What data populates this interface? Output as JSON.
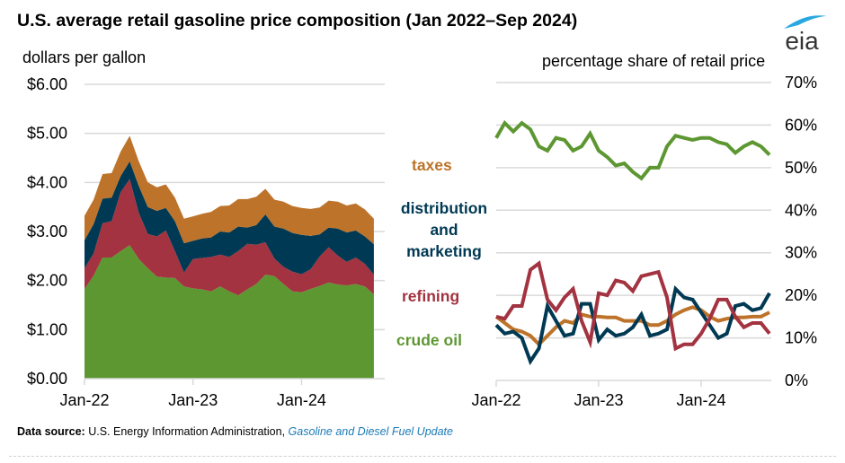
{
  "title": "U.S. average retail gasoline price composition (Jan 2022–Sep 2024)",
  "logo_text": "eia",
  "legend": {
    "taxes": "taxes",
    "distribution_line1": "distribution",
    "distribution_line2": "and",
    "distribution_line3": "marketing",
    "refining": "refining",
    "crude_oil": "crude oil"
  },
  "colors": {
    "crude_oil": "#5d9732",
    "refining": "#a33340",
    "distribution_marketing": "#003953",
    "taxes": "#bd732a",
    "grid": "#d9d9d9",
    "link": "#1b7bb7"
  },
  "footer": {
    "label": "Data source:",
    "text": " U.S. Energy Information Administration, ",
    "link_text": "Gasoline and Diesel Fuel Update"
  },
  "chart_data": [
    {
      "type": "area",
      "stacked": true,
      "title": "",
      "ylabel": "dollars per gallon",
      "xlabel": "",
      "ylim": [
        0,
        6
      ],
      "yticks": [
        "$0.00",
        "$1.00",
        "$2.00",
        "$3.00",
        "$4.00",
        "$5.00",
        "$6.00"
      ],
      "xticks": [
        "Jan-22",
        "Jan-23",
        "Jan-24"
      ],
      "grid": true,
      "x": [
        "Jan-22",
        "Feb-22",
        "Mar-22",
        "Apr-22",
        "May-22",
        "Jun-22",
        "Jul-22",
        "Aug-22",
        "Sep-22",
        "Oct-22",
        "Nov-22",
        "Dec-22",
        "Jan-23",
        "Feb-23",
        "Mar-23",
        "Apr-23",
        "May-23",
        "Jun-23",
        "Jul-23",
        "Aug-23",
        "Sep-23",
        "Oct-23",
        "Nov-23",
        "Dec-23",
        "Jan-24",
        "Feb-24",
        "Mar-24",
        "Apr-24",
        "May-24",
        "Jun-24",
        "Jul-24",
        "Aug-24",
        "Sep-24"
      ],
      "series": [
        {
          "name": "crude oil",
          "values": [
            1.83,
            2.1,
            2.47,
            2.47,
            2.6,
            2.72,
            2.44,
            2.25,
            2.08,
            2.06,
            2.05,
            1.88,
            1.84,
            1.82,
            1.78,
            1.88,
            1.78,
            1.7,
            1.82,
            1.93,
            2.12,
            2.09,
            1.93,
            1.78,
            1.76,
            1.83,
            1.89,
            1.96,
            1.92,
            1.9,
            1.93,
            1.88,
            1.72
          ]
        },
        {
          "name": "refining",
          "values": [
            0.42,
            0.45,
            0.7,
            0.74,
            1.2,
            1.35,
            0.94,
            0.7,
            0.82,
            0.96,
            0.55,
            0.28,
            0.6,
            0.64,
            0.7,
            0.65,
            0.7,
            0.9,
            0.93,
            0.8,
            0.66,
            0.36,
            0.35,
            0.4,
            0.37,
            0.4,
            0.6,
            0.72,
            0.59,
            0.48,
            0.54,
            0.46,
            0.4
          ]
        },
        {
          "name": "distribution and marketing",
          "values": [
            0.57,
            0.6,
            0.5,
            0.48,
            0.33,
            0.36,
            0.55,
            0.55,
            0.52,
            0.46,
            0.61,
            0.6,
            0.37,
            0.4,
            0.4,
            0.47,
            0.5,
            0.5,
            0.33,
            0.4,
            0.57,
            0.65,
            0.78,
            0.79,
            0.8,
            0.68,
            0.45,
            0.4,
            0.55,
            0.6,
            0.55,
            0.56,
            0.62
          ]
        },
        {
          "name": "taxes",
          "values": [
            0.5,
            0.5,
            0.5,
            0.5,
            0.5,
            0.52,
            0.5,
            0.5,
            0.48,
            0.48,
            0.48,
            0.5,
            0.5,
            0.5,
            0.52,
            0.52,
            0.55,
            0.56,
            0.58,
            0.58,
            0.52,
            0.55,
            0.55,
            0.55,
            0.55,
            0.55,
            0.55,
            0.55,
            0.55,
            0.55,
            0.55,
            0.55,
            0.52
          ]
        }
      ]
    },
    {
      "type": "line",
      "title": "",
      "ylabel": "percentage share of retail price",
      "xlabel": "",
      "ylim": [
        0,
        70
      ],
      "yticks": [
        "0%",
        "10%",
        "20%",
        "30%",
        "40%",
        "50%",
        "60%",
        "70%"
      ],
      "xticks": [
        "Jan-22",
        "Jan-23",
        "Jan-24"
      ],
      "grid": true,
      "x": [
        "Jan-22",
        "Feb-22",
        "Mar-22",
        "Apr-22",
        "May-22",
        "Jun-22",
        "Jul-22",
        "Aug-22",
        "Sep-22",
        "Oct-22",
        "Nov-22",
        "Dec-22",
        "Jan-23",
        "Feb-23",
        "Mar-23",
        "Apr-23",
        "May-23",
        "Jun-23",
        "Jul-23",
        "Aug-23",
        "Sep-23",
        "Oct-23",
        "Nov-23",
        "Dec-23",
        "Jan-24",
        "Feb-24",
        "Mar-24",
        "Apr-24",
        "May-24",
        "Jun-24",
        "Jul-24",
        "Aug-24",
        "Sep-24"
      ],
      "series": [
        {
          "name": "crude oil",
          "values": [
            57,
            60.5,
            58.5,
            60.5,
            59,
            55,
            54,
            57,
            56.5,
            54,
            55,
            58,
            54,
            52.5,
            50.5,
            51,
            49,
            47.5,
            50,
            50,
            55,
            57.5,
            57,
            56.5,
            57,
            57,
            56,
            55.5,
            53.5,
            55,
            56,
            55,
            53
          ]
        },
        {
          "name": "refining",
          "values": [
            15,
            14.5,
            17.5,
            17.5,
            26,
            27.5,
            19,
            16.5,
            19.5,
            21.5,
            14,
            9,
            20.5,
            20,
            23.5,
            23,
            21,
            24.5,
            25,
            25.5,
            19.5,
            7.5,
            8.5,
            8.5,
            11,
            14.5,
            19,
            19,
            15,
            12.5,
            13.5,
            13.5,
            11
          ]
        },
        {
          "name": "distribution and marketing",
          "values": [
            13,
            11,
            11.5,
            10,
            4.5,
            7.5,
            17.5,
            14,
            10.5,
            11,
            18,
            18,
            9.5,
            12,
            10.5,
            11,
            12.5,
            15.5,
            10.5,
            11,
            12,
            21.5,
            19.5,
            19,
            16,
            13,
            10,
            11,
            17.5,
            18,
            16.5,
            17,
            20.5
          ]
        },
        {
          "name": "taxes",
          "values": [
            15,
            13.5,
            12,
            11.5,
            10.5,
            8.5,
            10.5,
            12.5,
            14,
            13.5,
            15.5,
            15,
            15,
            14.8,
            14.8,
            14,
            14,
            14,
            13,
            13,
            14,
            15.5,
            16.5,
            17.2,
            16.5,
            15,
            14,
            14.5,
            14.8,
            14.8,
            15,
            15,
            16
          ]
        }
      ]
    }
  ]
}
